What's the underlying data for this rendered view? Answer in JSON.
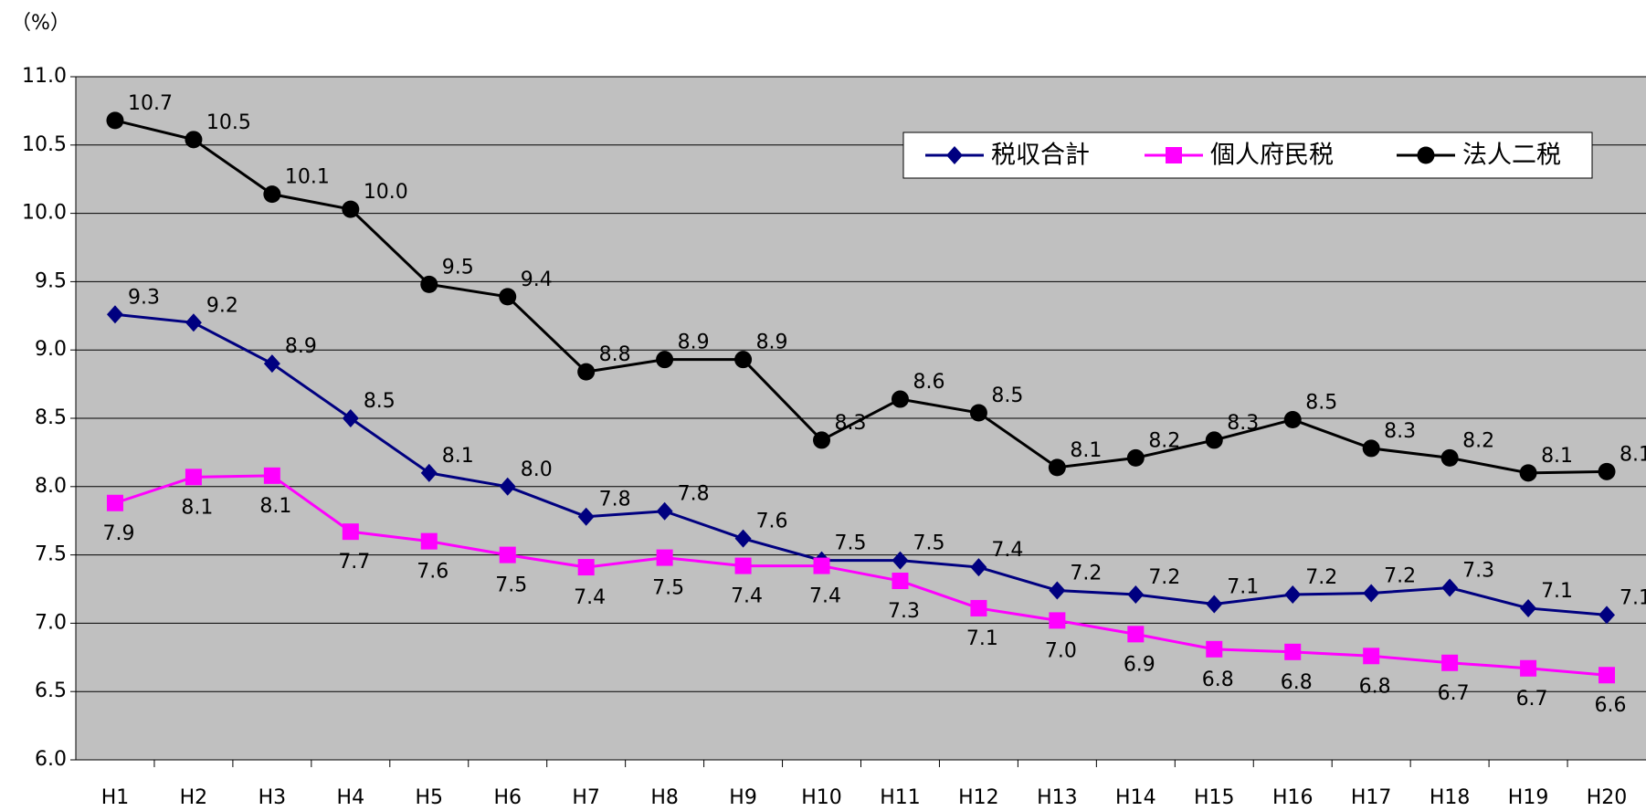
{
  "chart_data": {
    "type": "line",
    "y_axis_label": "（%）",
    "categories": [
      "H1",
      "H2",
      "H3",
      "H4",
      "H5",
      "H6",
      "H7",
      "H8",
      "H9",
      "H10",
      "H11",
      "H12",
      "H13",
      "H14",
      "H15",
      "H16",
      "H17",
      "H18",
      "H19",
      "H20"
    ],
    "series": [
      {
        "name": "税収合計",
        "color": "#000080",
        "marker": "diamond",
        "values": [
          9.26,
          9.2,
          8.9,
          8.5,
          8.1,
          8.0,
          7.78,
          7.82,
          7.62,
          7.46,
          7.46,
          7.41,
          7.24,
          7.21,
          7.14,
          7.21,
          7.22,
          7.26,
          7.11,
          7.06
        ],
        "value_labels": [
          "9.3",
          "9.2",
          "8.9",
          "8.5",
          "8.1",
          "8.0",
          "7.8",
          "7.8",
          "7.6",
          "7.5",
          "7.5",
          "7.4",
          "7.2",
          "7.2",
          "7.1",
          "7.2",
          "7.2",
          "7.3",
          "7.1",
          "7.1"
        ]
      },
      {
        "name": "個人府民税",
        "color": "#ff00ff",
        "marker": "square",
        "values": [
          7.88,
          8.07,
          8.08,
          7.67,
          7.6,
          7.5,
          7.41,
          7.48,
          7.42,
          7.42,
          7.31,
          7.11,
          7.02,
          6.92,
          6.81,
          6.79,
          6.76,
          6.71,
          6.67,
          6.62
        ],
        "value_labels": [
          "7.9",
          "8.1",
          "8.1",
          "7.7",
          "7.6",
          "7.5",
          "7.4",
          "7.5",
          "7.4",
          "7.4",
          "7.3",
          "7.1",
          "7.0",
          "6.9",
          "6.8",
          "6.8",
          "6.8",
          "6.7",
          "6.7",
          "6.6"
        ]
      },
      {
        "name": "法人二税",
        "color": "#000000",
        "marker": "circle",
        "values": [
          10.68,
          10.54,
          10.14,
          10.03,
          9.48,
          9.39,
          8.84,
          8.93,
          8.93,
          8.34,
          8.64,
          8.54,
          8.14,
          8.21,
          8.34,
          8.49,
          8.28,
          8.21,
          8.1,
          8.11
        ],
        "value_labels": [
          "10.7",
          "10.5",
          "10.1",
          "10.0",
          "9.5",
          "9.4",
          "8.8",
          "8.9",
          "8.9",
          "8.3",
          "8.6",
          "8.5",
          "8.1",
          "8.2",
          "8.3",
          "8.5",
          "8.3",
          "8.2",
          "8.1",
          "8.1"
        ]
      }
    ],
    "ylim": [
      6,
      11
    ],
    "yticks": [
      {
        "value": 6,
        "label": "6.0"
      },
      6.5,
      {
        "value": 7,
        "label": "7.0"
      },
      7.5,
      {
        "value": 8,
        "label": "8.0"
      },
      8.5,
      {
        "value": 9,
        "label": "9.0"
      },
      9.5,
      {
        "value": 10,
        "label": "10.0"
      },
      10.5,
      {
        "value": 11,
        "label": "11.0"
      }
    ],
    "grid": true,
    "legend": "top-right"
  }
}
